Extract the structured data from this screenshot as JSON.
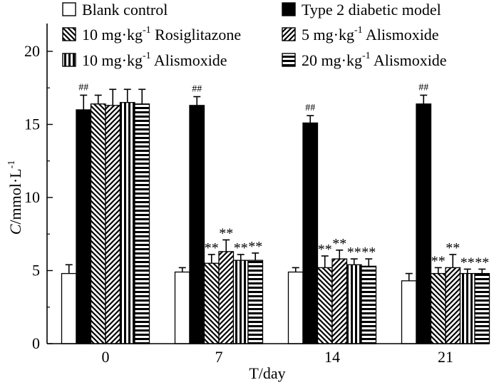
{
  "chart_data": {
    "type": "bar",
    "title": "",
    "xlabel": "T/day",
    "ylabel": {
      "var": "C",
      "unit": "/mmol·L",
      "sup": "-1"
    },
    "categories": [
      "0",
      "7",
      "14",
      "21"
    ],
    "ylim": [
      0,
      20
    ],
    "yticks": [
      "0",
      "5",
      "10",
      "15",
      "20"
    ],
    "grid": false,
    "legend_position": "top",
    "series": [
      {
        "name": "Blank control",
        "pattern": "blank",
        "values": [
          4.8,
          4.9,
          4.9,
          4.3
        ],
        "errors": [
          0.6,
          0.3,
          0.3,
          0.5
        ]
      },
      {
        "name": "Type 2 diabetic model",
        "pattern": "solid",
        "values": [
          16.0,
          16.3,
          15.1,
          16.4
        ],
        "errors": [
          1.0,
          0.6,
          0.5,
          0.6
        ]
      },
      {
        "name": "10 mg·kg-1 Rosiglitazone",
        "pattern": "backdiag",
        "values": [
          16.4,
          5.5,
          5.2,
          4.8
        ],
        "errors": [
          0.6,
          0.6,
          0.8,
          0.4
        ]
      },
      {
        "name": "5 mg·kg-1 Alismoxide",
        "pattern": "diag",
        "values": [
          16.3,
          6.3,
          5.8,
          5.2
        ],
        "errors": [
          1.1,
          0.8,
          0.6,
          0.9
        ]
      },
      {
        "name": "10 mg·kg-1 Alismoxide",
        "pattern": "vertical",
        "values": [
          16.5,
          5.7,
          5.4,
          4.8
        ],
        "errors": [
          0.9,
          0.4,
          0.4,
          0.3
        ]
      },
      {
        "name": "20 mg·kg-1 Alismoxide",
        "pattern": "horizontal",
        "values": [
          16.4,
          5.7,
          5.3,
          4.8
        ],
        "errors": [
          1.0,
          0.5,
          0.5,
          0.3
        ]
      }
    ],
    "annotations": [
      {
        "series": 1,
        "category": 0,
        "text": "##"
      },
      {
        "series": 1,
        "category": 1,
        "text": "##"
      },
      {
        "series": 1,
        "category": 2,
        "text": "##"
      },
      {
        "series": 1,
        "category": 3,
        "text": "##"
      },
      {
        "series": 2,
        "category": 1,
        "text": "**"
      },
      {
        "series": 3,
        "category": 1,
        "text": "**"
      },
      {
        "series": 4,
        "category": 1,
        "text": "**"
      },
      {
        "series": 5,
        "category": 1,
        "text": "**"
      },
      {
        "series": 2,
        "category": 2,
        "text": "**"
      },
      {
        "series": 3,
        "category": 2,
        "text": "**"
      },
      {
        "series": 4,
        "category": 2,
        "text": "**"
      },
      {
        "series": 5,
        "category": 2,
        "text": "**"
      },
      {
        "series": 2,
        "category": 3,
        "text": "**"
      },
      {
        "series": 3,
        "category": 3,
        "text": "**"
      },
      {
        "series": 4,
        "category": 3,
        "text": "**"
      },
      {
        "series": 5,
        "category": 3,
        "text": "**"
      }
    ],
    "legend": [
      {
        "pre": "Blank control",
        "sup": "",
        "post": ""
      },
      {
        "pre": "Type 2 diabetic model",
        "sup": "",
        "post": ""
      },
      {
        "pre": "10 mg·kg",
        "sup": "-1",
        "post": " Rosiglitazone"
      },
      {
        "pre": "5 mg·kg",
        "sup": "-1",
        "post": " Alismoxide"
      },
      {
        "pre": "10 mg·kg",
        "sup": "-1",
        "post": " Alismoxide"
      },
      {
        "pre": "20 mg·kg",
        "sup": "-1",
        "post": " Alismoxide"
      }
    ]
  }
}
